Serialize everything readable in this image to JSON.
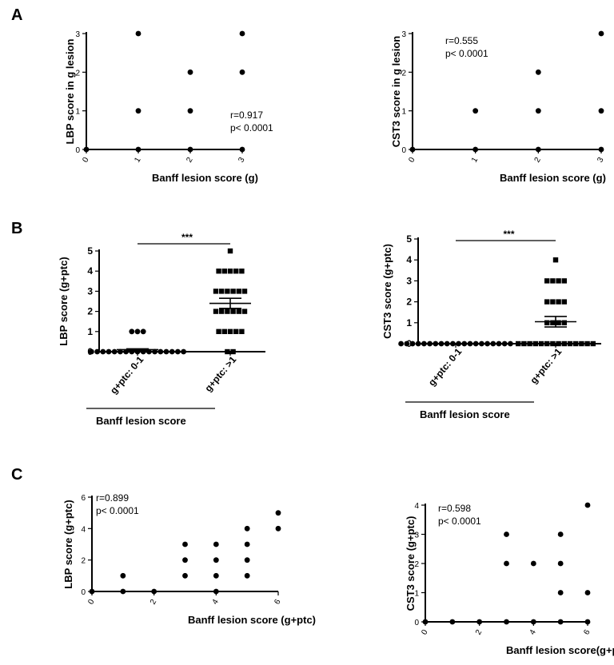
{
  "chart_data": [
    {
      "id": "A1",
      "panel": "A",
      "type": "scatter",
      "ylabel": "LBP  score in g lesion",
      "xlabel": "Banff lesion score (g)",
      "xlim": [
        0,
        3
      ],
      "ylim": [
        0,
        3
      ],
      "xticks": [
        0,
        1,
        2,
        3
      ],
      "yticks": [
        0,
        1,
        2,
        3
      ],
      "points": [
        [
          0,
          0
        ],
        [
          1,
          0
        ],
        [
          1,
          1
        ],
        [
          1,
          3
        ],
        [
          2,
          0
        ],
        [
          2,
          1
        ],
        [
          2,
          2
        ],
        [
          3,
          0
        ],
        [
          3,
          2
        ],
        [
          3,
          3
        ]
      ],
      "annotation": [
        "r=0.917",
        "p< 0.0001"
      ]
    },
    {
      "id": "A2",
      "panel": "A",
      "type": "scatter",
      "ylabel": "CST3 score in g lesion",
      "xlabel": "Banff lesion score (g)",
      "xlim": [
        0,
        3
      ],
      "ylim": [
        0,
        3
      ],
      "xticks": [
        0,
        1,
        2,
        3
      ],
      "yticks": [
        0,
        1,
        2,
        3
      ],
      "points": [
        [
          0,
          0
        ],
        [
          1,
          0
        ],
        [
          1,
          1
        ],
        [
          2,
          0
        ],
        [
          2,
          1
        ],
        [
          2,
          2
        ],
        [
          3,
          0
        ],
        [
          3,
          1
        ],
        [
          3,
          3
        ]
      ],
      "annotation": [
        "r=0.555",
        "p< 0.0001"
      ]
    },
    {
      "id": "B1",
      "panel": "B",
      "type": "scatter",
      "ylabel": "LBP score (g+ptc)",
      "xlabel": "Banff lesion score",
      "categories": [
        "g+ptc: 0-1",
        "g+ptc: >1"
      ],
      "ylim": [
        0,
        5
      ],
      "yticks": [
        0,
        1,
        2,
        3,
        4,
        5
      ],
      "series": [
        {
          "name": "g+ptc: 0-1",
          "marker": "circle",
          "mean": 0.1,
          "sem": 0.04,
          "values": [
            0,
            0,
            0,
            0,
            0,
            0,
            0,
            0,
            0,
            0,
            0,
            0,
            0,
            0,
            0,
            0,
            0,
            1,
            1,
            1
          ]
        },
        {
          "name": "g+ptc: >1",
          "marker": "square",
          "mean": 2.4,
          "sem": 0.25,
          "values": [
            0,
            0,
            1,
            1,
            1,
            1,
            1,
            2,
            2,
            2,
            2,
            2,
            2,
            3,
            3,
            3,
            3,
            3,
            3,
            4,
            4,
            4,
            4,
            4,
            5
          ]
        }
      ],
      "significance": "***"
    },
    {
      "id": "B2",
      "panel": "B",
      "type": "scatter",
      "ylabel": "CST3 score (g+ptc)",
      "xlabel": "Banff lesion score",
      "categories": [
        "g+ptc: 0-1",
        "g+ptc: >1"
      ],
      "ylim": [
        0,
        5
      ],
      "yticks": [
        0,
        1,
        2,
        3,
        4,
        5
      ],
      "series": [
        {
          "name": "g+ptc: 0-1",
          "marker": "circle",
          "mean": 0,
          "sem": 0,
          "values": [
            0,
            0,
            0,
            0,
            0,
            0,
            0,
            0,
            0,
            0,
            0,
            0,
            0,
            0,
            0,
            0,
            0,
            0,
            0,
            0
          ]
        },
        {
          "name": "g+ptc: >1",
          "marker": "square",
          "mean": 1.05,
          "sem": 0.25,
          "values": [
            0,
            0,
            0,
            0,
            0,
            0,
            0,
            0,
            0,
            0,
            0,
            0,
            0,
            0,
            1,
            1,
            1,
            1,
            2,
            2,
            2,
            2,
            3,
            3,
            3,
            3,
            4
          ]
        }
      ],
      "significance": "***"
    },
    {
      "id": "C1",
      "panel": "C",
      "type": "scatter",
      "ylabel": "LBP score (g+ptc)",
      "xlabel": "Banff lesion score (g+ptc)",
      "xlim": [
        0,
        6
      ],
      "ylim": [
        0,
        6
      ],
      "xticks": [
        0,
        2,
        4,
        6
      ],
      "yticks": [
        0,
        2,
        4,
        6
      ],
      "points": [
        [
          0,
          0
        ],
        [
          1,
          0
        ],
        [
          1,
          1
        ],
        [
          2,
          0
        ],
        [
          3,
          1
        ],
        [
          3,
          2
        ],
        [
          3,
          3
        ],
        [
          4,
          0
        ],
        [
          4,
          1
        ],
        [
          4,
          2
        ],
        [
          4,
          3
        ],
        [
          5,
          1
        ],
        [
          5,
          2
        ],
        [
          5,
          3
        ],
        [
          5,
          4
        ],
        [
          6,
          4
        ],
        [
          6,
          5
        ]
      ],
      "annotation": [
        "r=0.899",
        "p< 0.0001"
      ]
    },
    {
      "id": "C2",
      "panel": "C",
      "type": "scatter",
      "ylabel": "CST3 score  (g+ptc)",
      "xlabel": "Banff lesion score(g+ptc)",
      "xlim": [
        0,
        6
      ],
      "ylim": [
        0,
        4
      ],
      "xticks": [
        0,
        2,
        4,
        6
      ],
      "yticks": [
        0,
        1,
        2,
        3,
        4
      ],
      "points": [
        [
          0,
          0
        ],
        [
          1,
          0
        ],
        [
          2,
          0
        ],
        [
          3,
          0
        ],
        [
          3,
          2
        ],
        [
          3,
          3
        ],
        [
          4,
          0
        ],
        [
          4,
          2
        ],
        [
          5,
          0
        ],
        [
          5,
          1
        ],
        [
          5,
          2
        ],
        [
          5,
          3
        ],
        [
          6,
          0
        ],
        [
          6,
          1
        ],
        [
          6,
          4
        ]
      ],
      "annotation": [
        "r=0.598",
        "p< 0.0001"
      ]
    }
  ],
  "panel_labels": {
    "A": "A",
    "B": "B",
    "C": "C"
  }
}
